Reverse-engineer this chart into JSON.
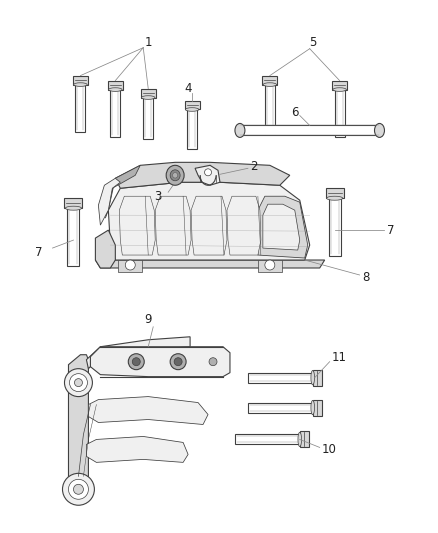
{
  "background_color": "#ffffff",
  "fig_width": 4.38,
  "fig_height": 5.33,
  "dpi": 100,
  "line_color": "#404040",
  "line_color_light": "#888888",
  "fill_light": "#f0f0f0",
  "fill_mid": "#d8d8d8",
  "fill_dark": "#b0b0b0"
}
